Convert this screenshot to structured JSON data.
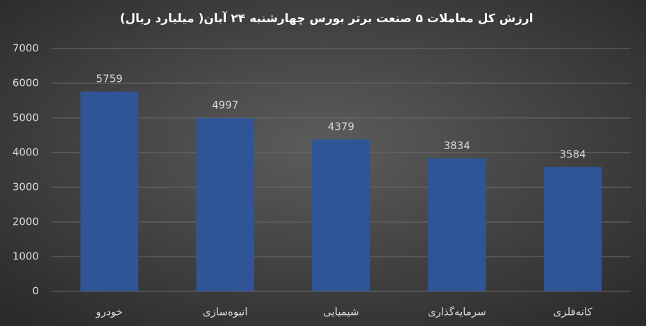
{
  "chart_data": {
    "type": "bar",
    "title": "ارزش کل معاملات ۵ صنعت برتر بورس چهارشنبه ۲۴ آبان( میلیارد ریال)",
    "categories": [
      "خودرو",
      "انبوه‌سازی",
      "شیمیایی",
      "سرمایه‌گذاری",
      "کانه‌فلزی"
    ],
    "values": [
      5759,
      4997,
      4379,
      3834,
      3584
    ],
    "color": "#2f5597",
    "ylim": [
      0,
      7000
    ],
    "yticks": [
      0,
      1000,
      2000,
      3000,
      4000,
      5000,
      6000,
      7000
    ],
    "grid": true
  }
}
